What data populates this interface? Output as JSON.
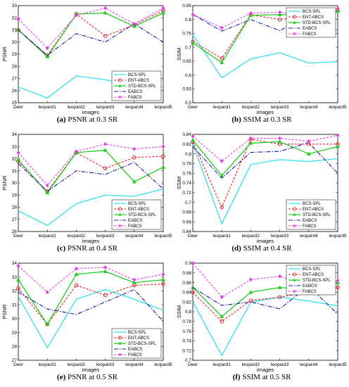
{
  "colors": {
    "BCS-SPL": "#33e0ee",
    "ENT-ABCS": "#e8232a",
    "STD-BCS-SPL": "#22cc22",
    "EABCS": "#1a1aa8",
    "FABCS": "#e23ee2"
  },
  "chart_data": [
    {
      "type": "line",
      "caption_letter": "(a)",
      "caption_text": "PSNR at 0.3 SR",
      "xlabel": "images",
      "ylabel": "PSNR",
      "categories": [
        "Deer",
        "leopard1",
        "leopard2",
        "leopard3",
        "leopard4",
        "leopard5"
      ],
      "ylim": [
        25,
        33
      ],
      "yticks": [
        25,
        26,
        27,
        28,
        29,
        30,
        31,
        32,
        33
      ],
      "legend_position": "bottom-right",
      "series": [
        {
          "name": "BCS-SPL",
          "values": [
            26.3,
            25.4,
            27.2,
            26.9,
            26.3,
            26.3
          ]
        },
        {
          "name": "ENT-ABCS",
          "values": [
            31.0,
            28.9,
            32.3,
            30.5,
            31.4,
            32.6
          ]
        },
        {
          "name": "STD-BCS-SPL",
          "values": [
            31.0,
            28.8,
            32.3,
            32.4,
            31.3,
            32.4
          ]
        },
        {
          "name": "EABCS",
          "values": [
            31.0,
            28.9,
            30.7,
            30.0,
            31.5,
            30.0
          ]
        },
        {
          "name": "FABCS",
          "values": [
            31.9,
            29.5,
            32.2,
            32.8,
            31.5,
            32.8
          ]
        }
      ]
    },
    {
      "type": "line",
      "caption_letter": "(b)",
      "caption_text": "SSIM at 0.3 SR",
      "xlabel": "images",
      "ylabel": "SSIM",
      "categories": [
        "Deer",
        "leopard1",
        "leopard2",
        "leopard3",
        "leopard4",
        "leopard5"
      ],
      "ylim": [
        0.5,
        0.85
      ],
      "yticks": [
        0.5,
        0.55,
        0.6,
        0.65,
        0.7,
        0.75,
        0.8,
        0.85
      ],
      "legend_position": "top-right",
      "series": [
        {
          "name": "BCS-SPL",
          "values": [
            0.745,
            0.59,
            0.658,
            0.68,
            0.643,
            0.648
          ]
        },
        {
          "name": "ENT-ABCS",
          "values": [
            0.72,
            0.66,
            0.817,
            0.8,
            0.816,
            0.832
          ]
        },
        {
          "name": "STD-BCS-SPL",
          "values": [
            0.715,
            0.645,
            0.815,
            0.818,
            0.816,
            0.83
          ]
        },
        {
          "name": "EABCS",
          "values": [
            0.818,
            0.758,
            0.8,
            0.76,
            0.816,
            0.76
          ]
        },
        {
          "name": "FABCS",
          "values": [
            0.818,
            0.77,
            0.823,
            0.826,
            0.818,
            0.84
          ]
        }
      ]
    },
    {
      "type": "line",
      "caption_letter": "(c)",
      "caption_text": "PSNR at 0.4 SR",
      "xlabel": "images",
      "ylabel": "PSNR",
      "categories": [
        "Deer",
        "leopard1",
        "leopard2",
        "leopard3",
        "leopard4",
        "leopard5"
      ],
      "ylim": [
        26,
        34
      ],
      "yticks": [
        26,
        27,
        28,
        29,
        30,
        31,
        32,
        33,
        34
      ],
      "legend_position": "bottom-right",
      "series": [
        {
          "name": "BCS-SPL",
          "values": [
            27.7,
            26.5,
            28.3,
            29.0,
            28.9,
            29.5
          ]
        },
        {
          "name": "ENT-ABCS",
          "values": [
            31.8,
            29.3,
            32.5,
            31.2,
            32.1,
            32.2
          ]
        },
        {
          "name": "STD-BCS-SPL",
          "values": [
            31.9,
            29.2,
            32.5,
            32.7,
            30.1,
            31.3
          ]
        },
        {
          "name": "EABCS",
          "values": [
            31.6,
            29.3,
            31.0,
            30.7,
            31.7,
            29.5
          ]
        },
        {
          "name": "FABCS",
          "values": [
            32.5,
            29.8,
            32.6,
            33.2,
            32.8,
            33.0
          ]
        }
      ]
    },
    {
      "type": "line",
      "caption_letter": "(d)",
      "caption_text": "SSIM at 0.4 SR",
      "xlabel": "images",
      "ylabel": "SSIM",
      "categories": [
        "Deer",
        "leopard1",
        "leopard2",
        "leopard3",
        "leopard4",
        "leopard5"
      ],
      "ylim": [
        0.64,
        0.84
      ],
      "yticks": [
        0.64,
        0.66,
        0.68,
        0.7,
        0.72,
        0.74,
        0.76,
        0.78,
        0.8,
        0.82,
        0.84
      ],
      "legend_position": "bottom-right",
      "series": [
        {
          "name": "BCS-SPL",
          "values": [
            0.82,
            0.656,
            0.778,
            0.788,
            0.784,
            0.79
          ]
        },
        {
          "name": "ENT-ABCS",
          "values": [
            0.825,
            0.69,
            0.83,
            0.82,
            0.82,
            0.82
          ]
        },
        {
          "name": "STD-BCS-SPL",
          "values": [
            0.828,
            0.755,
            0.822,
            0.825,
            0.8,
            0.815
          ]
        },
        {
          "name": "EABCS",
          "values": [
            0.815,
            0.75,
            0.803,
            0.805,
            0.823,
            0.76
          ]
        },
        {
          "name": "FABCS",
          "values": [
            0.836,
            0.785,
            0.832,
            0.832,
            0.826,
            0.838
          ]
        }
      ]
    },
    {
      "type": "line",
      "caption_letter": "(e)",
      "caption_text": "PSNR at 0.5 SR",
      "xlabel": "images",
      "ylabel": "PSNR",
      "categories": [
        "Deer",
        "leopard1",
        "leopard2",
        "leopard3",
        "leopard4",
        "leopard5"
      ],
      "ylim": [
        27,
        34
      ],
      "yticks": [
        27,
        28,
        29,
        30,
        31,
        32,
        33,
        34
      ],
      "legend_position": "bottom-right",
      "series": [
        {
          "name": "BCS-SPL",
          "values": [
            31.6,
            27.9,
            31.4,
            32.1,
            31.4,
            30.6
          ]
        },
        {
          "name": "ENT-ABCS",
          "values": [
            32.2,
            29.6,
            32.4,
            31.7,
            32.4,
            32.5
          ]
        },
        {
          "name": "STD-BCS-SPL",
          "values": [
            32.8,
            29.6,
            33.2,
            33.4,
            32.6,
            32.8
          ]
        },
        {
          "name": "EABCS",
          "values": [
            31.9,
            30.7,
            30.3,
            31.2,
            32.1,
            29.8
          ]
        },
        {
          "name": "FABCS",
          "values": [
            33.8,
            31.9,
            33.6,
            33.7,
            32.8,
            33.2
          ]
        }
      ]
    },
    {
      "type": "line",
      "caption_letter": "(f)",
      "caption_text": "SSIM at 0.5 SR",
      "xlabel": "images",
      "ylabel": "SSIM",
      "categories": [
        "Deer",
        "leopard1",
        "leopard2",
        "leopard3",
        "leopard4",
        "leopard5"
      ],
      "ylim": [
        0.7,
        0.9
      ],
      "yticks": [
        0.7,
        0.72,
        0.74,
        0.76,
        0.78,
        0.8,
        0.82,
        0.84,
        0.86,
        0.88,
        0.9
      ],
      "legend_position": "top-right",
      "series": [
        {
          "name": "BCS-SPL",
          "values": [
            0.82,
            0.71,
            0.82,
            0.83,
            0.822,
            0.812
          ]
        },
        {
          "name": "ENT-ABCS",
          "values": [
            0.84,
            0.78,
            0.823,
            0.83,
            0.84,
            0.85
          ]
        },
        {
          "name": "STD-BCS-SPL",
          "values": [
            0.85,
            0.79,
            0.84,
            0.85,
            0.845,
            0.86
          ]
        },
        {
          "name": "EABCS",
          "values": [
            0.85,
            0.813,
            0.82,
            0.806,
            0.853,
            0.795
          ]
        },
        {
          "name": "FABCS",
          "values": [
            0.9,
            0.83,
            0.866,
            0.873,
            0.85,
            0.864
          ]
        }
      ]
    }
  ]
}
